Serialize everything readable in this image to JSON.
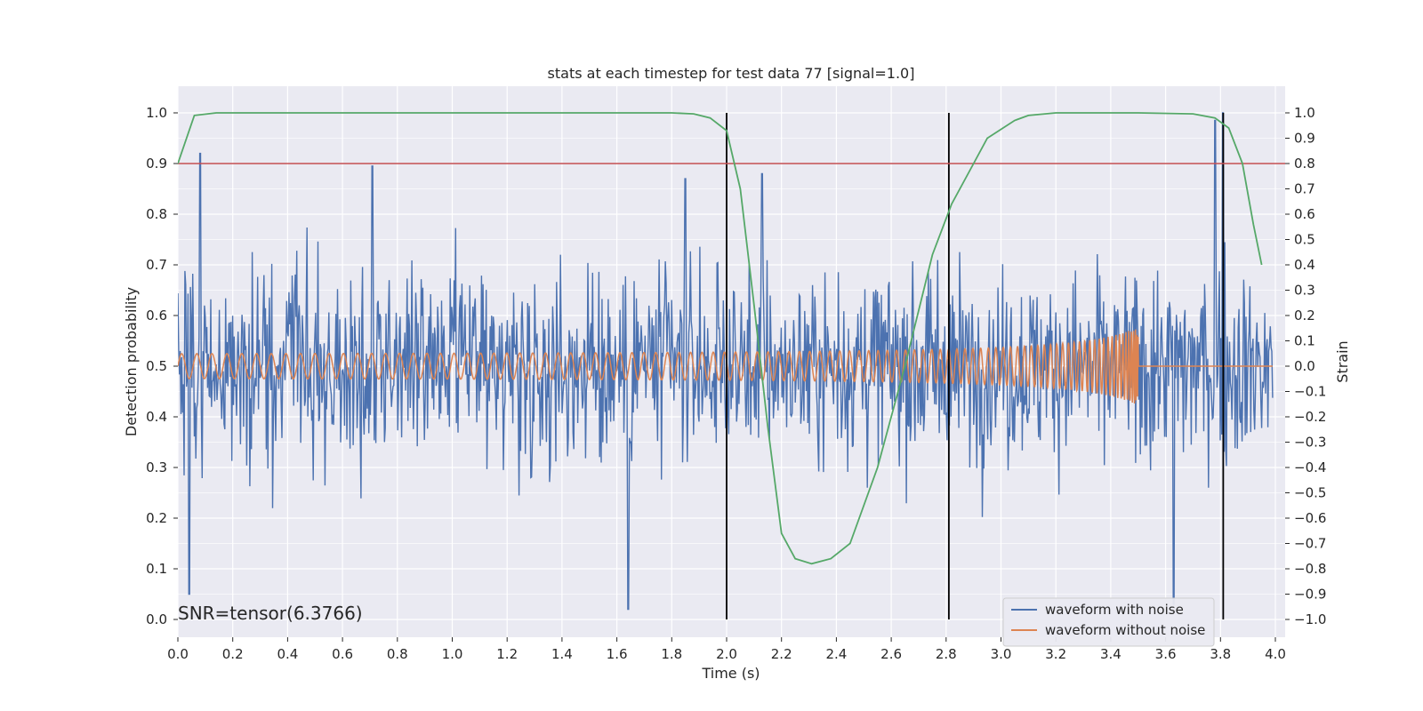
{
  "chart_data": {
    "type": "line",
    "title": "stats at each timestep for test data 77 [signal=1.0]",
    "xlabel": "Time (s)",
    "ylabel_left": "Detection probability",
    "ylabel_right": "Strain",
    "annotation": "SNR=tensor(6.3766)",
    "xlim": [
      0.0,
      4.0
    ],
    "ylim_left": [
      0.0,
      1.0
    ],
    "ylim_right": [
      -1.0,
      1.0
    ],
    "x_ticks": [
      0.0,
      0.2,
      0.4,
      0.6,
      0.8,
      1.0,
      1.2,
      1.4,
      1.6,
      1.8,
      2.0,
      2.2,
      2.4,
      2.6,
      2.8,
      3.0,
      3.2,
      3.4,
      3.6,
      3.8,
      4.0
    ],
    "x_tick_labels": [
      "0.0",
      "0.2",
      "0.4",
      "0.6",
      "0.8",
      "1.0",
      "1.2",
      "1.4",
      "1.6",
      "1.8",
      "2.0",
      "2.2",
      "2.4",
      "2.6",
      "2.8",
      "3.0",
      "3.2",
      "3.4",
      "3.6",
      "3.8",
      "4.0"
    ],
    "y_left_ticks": [
      0.0,
      0.1,
      0.2,
      0.3,
      0.4,
      0.5,
      0.6,
      0.7,
      0.8,
      0.9,
      1.0
    ],
    "y_left_tick_labels": [
      "0.0",
      "0.1",
      "0.2",
      "0.3",
      "0.4",
      "0.5",
      "0.6",
      "0.7",
      "0.8",
      "0.9",
      "1.0"
    ],
    "y_right_ticks": [
      -1.0,
      -0.9,
      -0.8,
      -0.7,
      -0.6,
      -0.5,
      -0.4,
      -0.3,
      -0.2,
      -0.1,
      0.0,
      0.1,
      0.2,
      0.3,
      0.4,
      0.5,
      0.6,
      0.7,
      0.8,
      0.9,
      1.0
    ],
    "y_right_tick_labels": [
      "−1.0",
      "−0.9",
      "−0.8",
      "−0.7",
      "−0.6",
      "−0.5",
      "−0.4",
      "−0.3",
      "−0.2",
      "−0.1",
      "0.0",
      "0.1",
      "0.2",
      "0.3",
      "0.4",
      "0.5",
      "0.6",
      "0.7",
      "0.8",
      "0.9",
      "1.0"
    ],
    "grid": true,
    "legend_position": "lower-right",
    "detection_probability": {
      "color": "#55a868",
      "x": [
        0.0,
        0.06,
        0.14,
        0.3,
        0.6,
        1.0,
        1.4,
        1.8,
        1.88,
        1.94,
        2.0,
        2.05,
        2.1,
        2.15,
        2.2,
        2.25,
        2.31,
        2.38,
        2.45,
        2.55,
        2.65,
        2.75,
        2.82,
        2.9,
        2.95,
        3.05,
        3.1,
        3.2,
        3.5,
        3.7,
        3.78,
        3.83,
        3.88,
        3.92,
        3.95
      ],
      "y": [
        0.9,
        0.995,
        1.0,
        1.0,
        1.0,
        1.0,
        1.0,
        1.0,
        0.998,
        0.99,
        0.965,
        0.85,
        0.62,
        0.38,
        0.17,
        0.12,
        0.11,
        0.12,
        0.15,
        0.3,
        0.5,
        0.72,
        0.82,
        0.9,
        0.95,
        0.985,
        0.995,
        1.0,
        1.0,
        0.998,
        0.99,
        0.97,
        0.9,
        0.78,
        0.7
      ]
    },
    "threshold_line": {
      "y": 0.9,
      "color": "#c44e52"
    },
    "vertical_markers": {
      "x": [
        2.0,
        2.81,
        3.81
      ],
      "color": "#000000"
    },
    "series": [
      {
        "name": "waveform with noise",
        "color": "#4c72b0",
        "axis": "right",
        "x_range": [
          0.0,
          3.99
        ],
        "y_min": -0.96,
        "y_max": 1.0,
        "peaks": [
          [
            0.08,
            0.84
          ],
          [
            0.71,
            0.79
          ],
          [
            1.85,
            0.74
          ],
          [
            2.13,
            0.76
          ],
          [
            3.81,
            1.0
          ],
          [
            3.78,
            0.97
          ],
          [
            1.64,
            -0.96
          ],
          [
            3.63,
            -0.94
          ],
          [
            0.04,
            -0.9
          ]
        ]
      },
      {
        "name": "waveform without noise",
        "color": "#dd8452",
        "axis": "right",
        "x_range": [
          0.0,
          3.99
        ],
        "chirp_start_freq_hz": 18,
        "chirp_end_time_s": 3.5,
        "amplitude_start": 0.045,
        "amplitude_peak": 0.15
      }
    ]
  }
}
